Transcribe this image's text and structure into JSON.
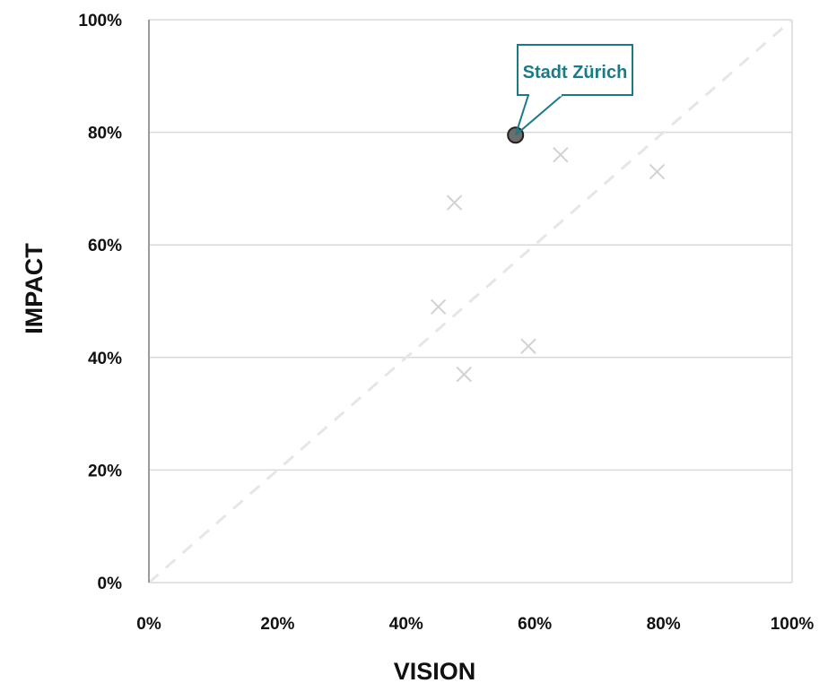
{
  "chart_data": {
    "type": "scatter",
    "xlabel": "VISION",
    "ylabel": "IMPACT",
    "xlim": [
      0,
      100
    ],
    "ylim": [
      0,
      100
    ],
    "x_ticks": [
      "0%",
      "20%",
      "40%",
      "60%",
      "80%",
      "100%"
    ],
    "y_ticks": [
      "0%",
      "20%",
      "40%",
      "60%",
      "80%",
      "100%"
    ],
    "grid": "horizontal",
    "reference_line": "diagonal y = x (dashed)",
    "highlighted_point": {
      "label": "Stadt Zürich",
      "x": 57,
      "y": 79.5
    },
    "other_points": [
      {
        "x": 47.5,
        "y": 67.5
      },
      {
        "x": 64,
        "y": 76
      },
      {
        "x": 79,
        "y": 73
      },
      {
        "x": 45,
        "y": 49
      },
      {
        "x": 59,
        "y": 42
      },
      {
        "x": 49,
        "y": 37
      }
    ]
  },
  "colors": {
    "highlight_fill": "#6d6d6d",
    "highlight_stroke": "#222222",
    "callout": "#1b7a86",
    "other_marker": "#d2d2d2",
    "gridline": "#d9d9d9",
    "reference_line": "#e6e6e6"
  }
}
